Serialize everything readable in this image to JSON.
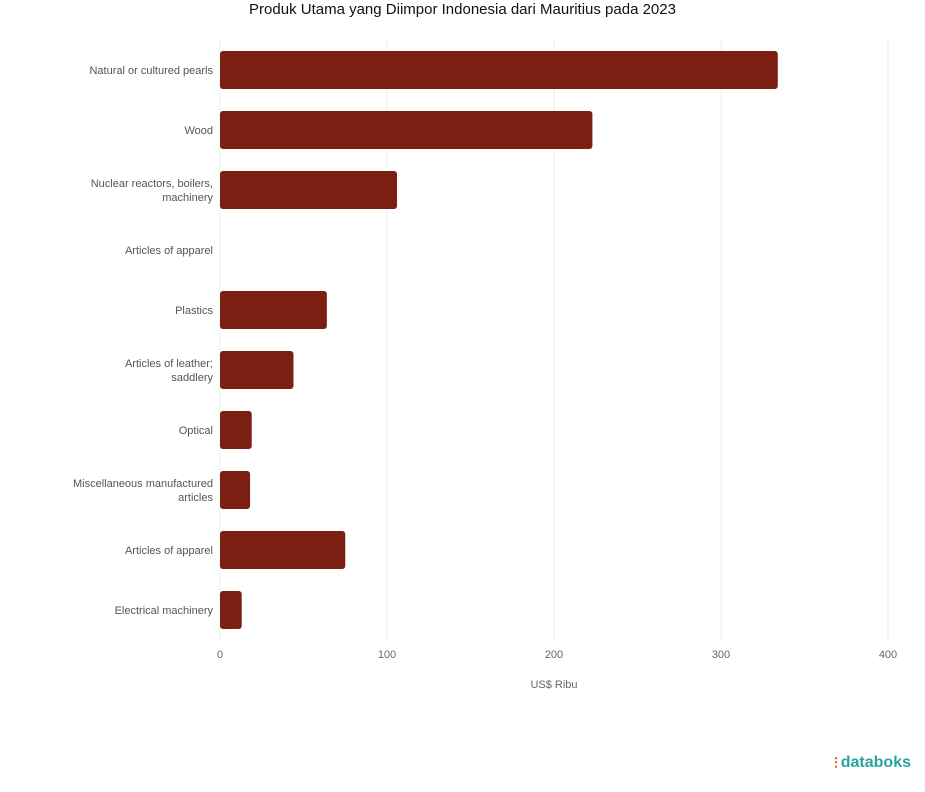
{
  "chart_data": {
    "type": "bar",
    "orientation": "horizontal",
    "title": "Produk Utama yang Diimpor Indonesia dari Mauritius pada 2023",
    "xlabel": "US$ Ribu",
    "ylabel": "",
    "categories": [
      "Natural or cultured pearls",
      "Wood",
      "Nuclear reactors, boilers, machinery",
      "Articles of apparel",
      "Plastics",
      "Articles of leather; saddlery",
      "Optical",
      "Miscellaneous manufactured articles",
      "Articles of apparel",
      "Electrical machinery"
    ],
    "values": [
      334,
      223,
      106,
      0,
      64,
      44,
      19,
      18,
      75,
      13
    ],
    "xlim": [
      0,
      400
    ],
    "xticks": [
      "0",
      "100",
      "200",
      "300",
      "400"
    ],
    "grid": true,
    "bar_color": "#7a1f12"
  },
  "brand": {
    "logo": "databoks"
  }
}
